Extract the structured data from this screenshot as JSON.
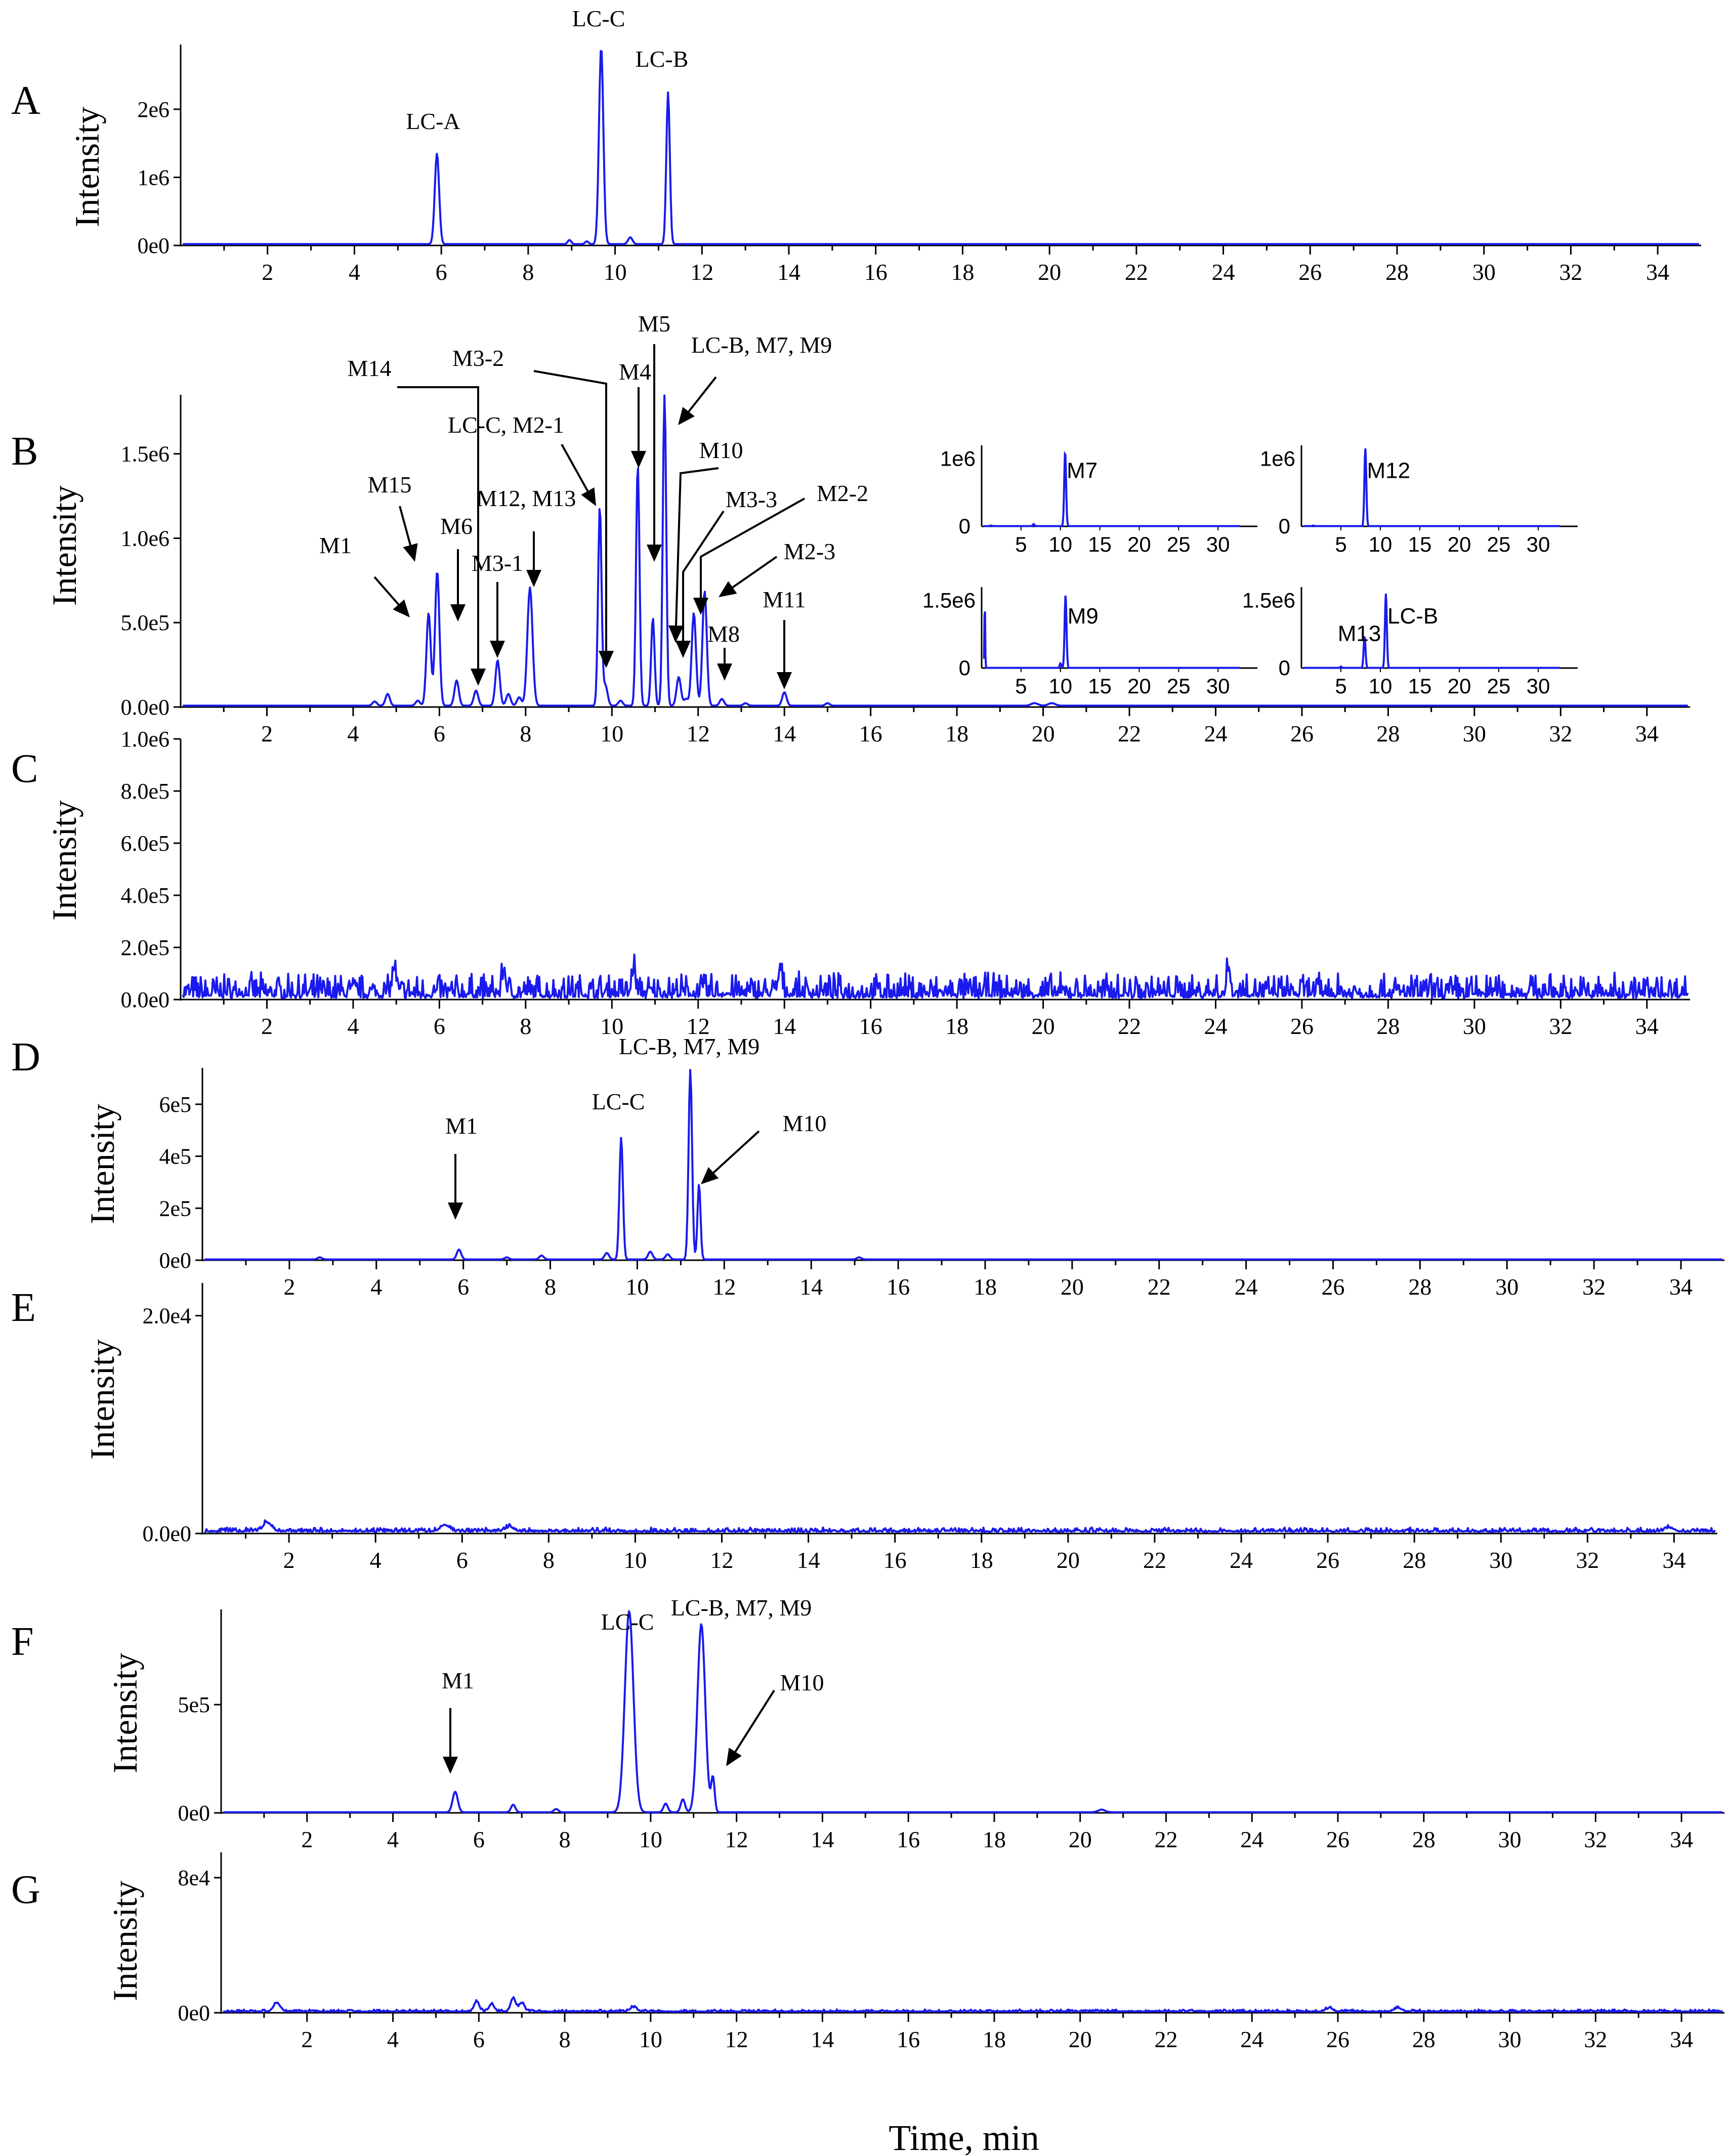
{
  "figure": {
    "shared_xlabel": "Time, min",
    "trace_color": "#1a1aee"
  },
  "chart_data": [
    {
      "type": "line",
      "panel": "A",
      "ylabel": "Intensity",
      "xlim": [
        0,
        35
      ],
      "ylim": [
        0,
        2950000
      ],
      "xticks": [
        2,
        4,
        6,
        8,
        10,
        12,
        14,
        16,
        18,
        20,
        22,
        24,
        26,
        28,
        30,
        32,
        34
      ],
      "yticks": [
        {
          "v": 0,
          "label": "0e0"
        },
        {
          "v": 1000000,
          "label": "1e6"
        },
        {
          "v": 2000000,
          "label": "2e6"
        }
      ],
      "baseline": 20000,
      "noise": 0,
      "peaks": [
        [
          5.9,
          1330000,
          0.05
        ],
        [
          8.95,
          60000,
          0.04
        ],
        [
          9.35,
          40000,
          0.04
        ],
        [
          9.68,
          2900000,
          0.05
        ],
        [
          10.35,
          100000,
          0.05
        ],
        [
          11.22,
          2230000,
          0.04
        ]
      ],
      "annotations": [
        {
          "label": "LC-A",
          "x": 5.9,
          "y": 1330000
        },
        {
          "label": "LC-C",
          "x": 9.68,
          "y": 2900000
        },
        {
          "label": "LC-B",
          "x": 11.22,
          "y": 2230000
        }
      ]
    },
    {
      "type": "line",
      "panel": "B",
      "ylabel": "Intensity",
      "xlim": [
        0,
        35
      ],
      "ylim": [
        0,
        1850000
      ],
      "xticks": [
        2,
        4,
        6,
        8,
        10,
        12,
        14,
        16,
        18,
        20,
        22,
        24,
        26,
        28,
        30,
        32,
        34
      ],
      "yticks": [
        {
          "v": 0,
          "label": "0.0e0"
        },
        {
          "v": 500000,
          "label": "5.0e5"
        },
        {
          "v": 1000000,
          "label": "1.0e6"
        },
        {
          "v": 1500000,
          "label": "1.5e6"
        }
      ],
      "baseline": 8000,
      "noise": 0,
      "peaks": [
        [
          4.5,
          25000,
          0.05
        ],
        [
          4.8,
          70000,
          0.05
        ],
        [
          5.5,
          30000,
          0.05
        ],
        [
          5.75,
          550000,
          0.05
        ],
        [
          5.95,
          800000,
          0.05
        ],
        [
          6.4,
          150000,
          0.05
        ],
        [
          6.85,
          90000,
          0.05
        ],
        [
          7.35,
          270000,
          0.05
        ],
        [
          7.6,
          70000,
          0.05
        ],
        [
          7.85,
          50000,
          0.05
        ],
        [
          8.1,
          700000,
          0.06
        ],
        [
          9.72,
          1180000,
          0.04
        ],
        [
          9.85,
          120000,
          0.05
        ],
        [
          10.2,
          30000,
          0.05
        ],
        [
          10.6,
          1430000,
          0.04
        ],
        [
          10.95,
          520000,
          0.04
        ],
        [
          11.22,
          1840000,
          0.04
        ],
        [
          11.55,
          170000,
          0.05
        ],
        [
          11.72,
          40000,
          0.05
        ],
        [
          11.9,
          550000,
          0.05
        ],
        [
          12.15,
          680000,
          0.05
        ],
        [
          12.55,
          40000,
          0.05
        ],
        [
          13.1,
          15000,
          0.05
        ],
        [
          14.0,
          80000,
          0.05
        ],
        [
          15.0,
          15000,
          0.05
        ],
        [
          19.8,
          15000,
          0.08
        ],
        [
          20.2,
          15000,
          0.08
        ]
      ],
      "annotations": [
        {
          "label": "M1",
          "x": 5.9,
          "y": 580000
        },
        {
          "label": "M15",
          "x": 5.95,
          "y": 820000
        },
        {
          "label": "M6",
          "x": 6.4,
          "y": 160000
        },
        {
          "label": "M3-1",
          "x": 7.35,
          "y": 280000
        },
        {
          "label": "M14",
          "x": 6.85,
          "y": 90000
        },
        {
          "label": "M12, M13",
          "x": 8.1,
          "y": 710000
        },
        {
          "label": "LC-C, M2-1",
          "x": 9.72,
          "y": 1190000
        },
        {
          "label": "M3-2",
          "x": 9.85,
          "y": 120000
        },
        {
          "label": "M4",
          "x": 10.6,
          "y": 1440000
        },
        {
          "label": "M5",
          "x": 10.95,
          "y": 520000
        },
        {
          "label": "LC-B, M7, M9",
          "x": 11.22,
          "y": 1840000
        },
        {
          "label": "M10",
          "x": 11.55,
          "y": 170000
        },
        {
          "label": "M3-3",
          "x": 11.72,
          "y": 40000
        },
        {
          "label": "M2-2",
          "x": 11.9,
          "y": 550000
        },
        {
          "label": "M2-3",
          "x": 12.15,
          "y": 680000
        },
        {
          "label": "M8",
          "x": 12.55,
          "y": 40000
        },
        {
          "label": "M11",
          "x": 14.0,
          "y": 80000
        }
      ],
      "insets": [
        {
          "name": "inset-M7",
          "xlim": [
            0,
            35
          ],
          "ylim": [
            0,
            1200000
          ],
          "xticks": [
            5,
            10,
            15,
            20,
            25,
            30
          ],
          "ytick_label": "1e6",
          "ytick_value": 1000000,
          "peaks": [
            [
              10.6,
              1100000,
              0.12
            ],
            [
              6.6,
              30000,
              0.1
            ],
            [
              1.2,
              8000,
              0.1
            ]
          ],
          "labels": [
            {
              "text": "M7",
              "x": 10.8,
              "y": 820000
            }
          ]
        },
        {
          "name": "inset-M12",
          "xlim": [
            0,
            35
          ],
          "ylim": [
            0,
            1200000
          ],
          "xticks": [
            5,
            10,
            15,
            20,
            25,
            30
          ],
          "ytick_label": "1e6",
          "ytick_value": 1000000,
          "peaks": [
            [
              8.1,
              1150000,
              0.12
            ],
            [
              1.5,
              8000,
              0.1
            ]
          ],
          "labels": [
            {
              "text": "M12",
              "x": 8.3,
              "y": 820000
            }
          ]
        },
        {
          "name": "inset-M9",
          "xlim": [
            0,
            35
          ],
          "ylim": [
            0,
            1800000
          ],
          "xticks": [
            5,
            10,
            15,
            20,
            25,
            30
          ],
          "ytick_label": "1.5e6",
          "ytick_value": 1500000,
          "peaks": [
            [
              10.65,
              1620000,
              0.12
            ],
            [
              10.0,
              100000,
              0.1
            ],
            [
              0.4,
              1500000,
              0.05
            ]
          ],
          "labels": [
            {
              "text": "M9",
              "x": 10.9,
              "y": 1150000
            }
          ]
        },
        {
          "name": "inset-M13",
          "xlim": [
            0,
            35
          ],
          "ylim": [
            0,
            1800000
          ],
          "xticks": [
            5,
            10,
            15,
            20,
            25,
            30
          ],
          "ytick_label": "1.5e6",
          "ytick_value": 1500000,
          "peaks": [
            [
              8.0,
              700000,
              0.12
            ],
            [
              10.7,
              1650000,
              0.12
            ],
            [
              5.0,
              30000,
              0.1
            ]
          ],
          "labels": [
            {
              "text": "M13",
              "x": 4.6,
              "y": 760000
            },
            {
              "text": "LC-B",
              "x": 10.9,
              "y": 1150000
            }
          ]
        }
      ]
    },
    {
      "type": "line",
      "panel": "C",
      "ylabel": "Intensity",
      "xlim": [
        0,
        35
      ],
      "ylim": [
        0,
        1000000
      ],
      "xticks": [
        2,
        4,
        6,
        8,
        10,
        12,
        14,
        16,
        18,
        20,
        22,
        24,
        26,
        28,
        30,
        32,
        34
      ],
      "yticks": [
        {
          "v": 0,
          "label": "0.0e0"
        },
        {
          "v": 200000,
          "label": "2.0e5"
        },
        {
          "v": 400000,
          "label": "4.0e5"
        },
        {
          "v": 600000,
          "label": "6.0e5"
        },
        {
          "v": 800000,
          "label": "8.0e5"
        },
        {
          "v": 1000000,
          "label": "1.0e6"
        }
      ],
      "baseline": 5000,
      "noise": 90000,
      "seed": 7,
      "peaks": [
        [
          4.95,
          100000,
          0.04
        ],
        [
          7.5,
          95000,
          0.04
        ],
        [
          10.5,
          100000,
          0.04
        ],
        [
          13.9,
          100000,
          0.04
        ],
        [
          24.3,
          100000,
          0.04
        ]
      ],
      "annotations": []
    },
    {
      "type": "line",
      "panel": "D",
      "ylabel": "Intensity",
      "xlim": [
        0,
        35
      ],
      "ylim": [
        0,
        740000
      ],
      "xticks": [
        2,
        4,
        6,
        8,
        10,
        12,
        14,
        16,
        18,
        20,
        22,
        24,
        26,
        28,
        30,
        32,
        34
      ],
      "yticks": [
        {
          "v": 0,
          "label": "0e0"
        },
        {
          "v": 200000,
          "label": "2e5"
        },
        {
          "v": 400000,
          "label": "4e5"
        },
        {
          "v": 600000,
          "label": "6e5"
        }
      ],
      "baseline": 3000,
      "noise": 0,
      "peaks": [
        [
          2.7,
          8000,
          0.05
        ],
        [
          5.9,
          38000,
          0.05
        ],
        [
          7.0,
          8000,
          0.05
        ],
        [
          7.8,
          15000,
          0.05
        ],
        [
          9.3,
          25000,
          0.05
        ],
        [
          9.63,
          470000,
          0.04
        ],
        [
          10.3,
          30000,
          0.05
        ],
        [
          10.7,
          20000,
          0.05
        ],
        [
          11.22,
          730000,
          0.04
        ],
        [
          11.42,
          290000,
          0.035
        ],
        [
          15.1,
          8000,
          0.05
        ]
      ],
      "annotations": [
        {
          "label": "M1",
          "x": 5.9,
          "y": 38000
        },
        {
          "label": "LC-C",
          "x": 9.63,
          "y": 470000
        },
        {
          "label": "LC-B, M7, M9",
          "x": 11.22,
          "y": 730000
        },
        {
          "label": "M10",
          "x": 11.42,
          "y": 290000
        }
      ]
    },
    {
      "type": "line",
      "panel": "E",
      "ylabel": "Intensity",
      "xlim": [
        0,
        35
      ],
      "ylim": [
        0,
        23000
      ],
      "xticks": [
        2,
        4,
        6,
        8,
        10,
        12,
        14,
        16,
        18,
        20,
        22,
        24,
        26,
        28,
        30,
        32,
        34
      ],
      "yticks": [
        {
          "v": 0,
          "label": "0.0e0"
        },
        {
          "v": 20000,
          "label": "2.0e4"
        }
      ],
      "baseline": 150,
      "noise": 350,
      "seed": 11,
      "peaks": [
        [
          1.5,
          800,
          0.1
        ],
        [
          5.6,
          600,
          0.1
        ],
        [
          7.1,
          400,
          0.1
        ],
        [
          33.9,
          350,
          0.1
        ]
      ],
      "annotations": []
    },
    {
      "type": "line",
      "panel": "F",
      "ylabel": "Intensity",
      "xlim": [
        0,
        35
      ],
      "ylim": [
        0,
        940000
      ],
      "xticks": [
        2,
        4,
        6,
        8,
        10,
        12,
        14,
        16,
        18,
        20,
        22,
        24,
        26,
        28,
        30,
        32,
        34
      ],
      "yticks": [
        {
          "v": 0,
          "label": "0e0"
        },
        {
          "v": 500000,
          "label": "5e5"
        }
      ],
      "baseline": 3000,
      "noise": 0,
      "peaks": [
        [
          5.45,
          95000,
          0.06
        ],
        [
          6.8,
          35000,
          0.05
        ],
        [
          7.8,
          15000,
          0.05
        ],
        [
          9.5,
          930000,
          0.1
        ],
        [
          10.35,
          40000,
          0.05
        ],
        [
          10.75,
          60000,
          0.05
        ],
        [
          11.18,
          870000,
          0.09
        ],
        [
          11.45,
          160000,
          0.04
        ],
        [
          20.5,
          12000,
          0.08
        ]
      ],
      "annotations": [
        {
          "label": "M1",
          "x": 5.45,
          "y": 95000
        },
        {
          "label": "LC-C",
          "x": 9.5,
          "y": 930000
        },
        {
          "label": "LC-B, M7, M9",
          "x": 11.18,
          "y": 870000
        },
        {
          "label": "M10",
          "x": 11.45,
          "y": 160000
        }
      ]
    },
    {
      "type": "line",
      "panel": "G",
      "ylabel": "Intensity",
      "xlim": [
        0,
        35
      ],
      "ylim": [
        0,
        95000
      ],
      "xticks": [
        2,
        4,
        6,
        8,
        10,
        12,
        14,
        16,
        18,
        20,
        22,
        24,
        26,
        28,
        30,
        32,
        34
      ],
      "yticks": [
        {
          "v": 0,
          "label": "0e0"
        },
        {
          "v": 80000,
          "label": "8e4"
        }
      ],
      "baseline": 600,
      "noise": 1200,
      "seed": 23,
      "peaks": [
        [
          1.3,
          5000,
          0.08
        ],
        [
          5.95,
          6000,
          0.06
        ],
        [
          6.3,
          4500,
          0.06
        ],
        [
          6.8,
          8000,
          0.06
        ],
        [
          7.0,
          5000,
          0.06
        ],
        [
          9.6,
          2500,
          0.08
        ],
        [
          25.8,
          2000,
          0.08
        ],
        [
          27.4,
          2200,
          0.08
        ]
      ],
      "annotations": []
    }
  ]
}
